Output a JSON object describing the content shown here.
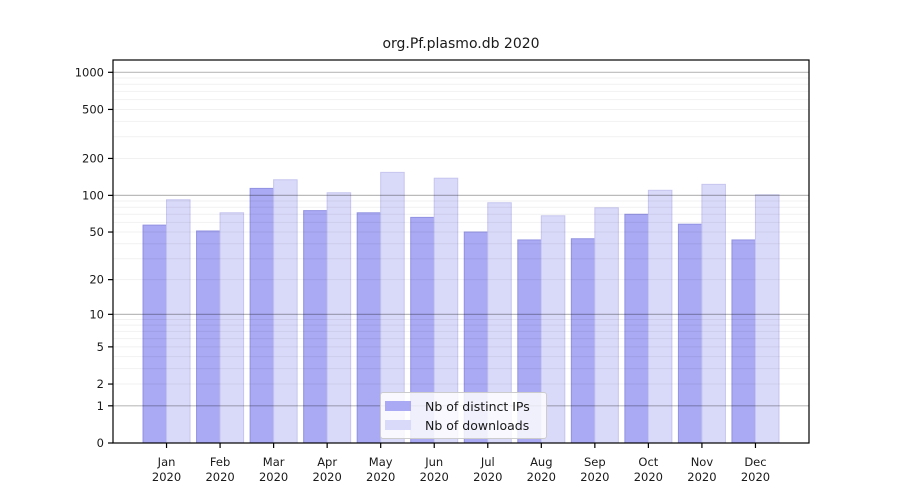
{
  "chart_data": {
    "type": "bar",
    "title": "org.Pf.plasmo.db 2020",
    "y_scale": "log1p",
    "grid": true,
    "categories": [
      "Jan",
      "Feb",
      "Mar",
      "Apr",
      "May",
      "Jun",
      "Jul",
      "Aug",
      "Sep",
      "Oct",
      "Nov",
      "Dec"
    ],
    "x_year_label": "2020",
    "series": [
      {
        "name": "Nb of distinct IPs",
        "color": "#a9a9f4",
        "edge_color": "#9292e2",
        "values": [
          57,
          51,
          114,
          75,
          72,
          66,
          50,
          43,
          44,
          70,
          58,
          43
        ]
      },
      {
        "name": "Nb of downloads",
        "color": "#d9d9f9",
        "edge_color": "#c5c5ef",
        "values": [
          92,
          72,
          134,
          105,
          154,
          138,
          87,
          68,
          79,
          110,
          123,
          101
        ]
      }
    ],
    "yticks": [
      0,
      1,
      2,
      5,
      10,
      20,
      50,
      100,
      200,
      500,
      1000
    ],
    "ylim": [
      0,
      1260
    ],
    "legend_position": "bottom-center-inside"
  },
  "colors": {
    "text": "#1a1a1a",
    "spine": "#000000",
    "grid_minor": "rgba(0,0,0,0.055)",
    "grid_major": "rgba(0,0,0,0.27)"
  }
}
